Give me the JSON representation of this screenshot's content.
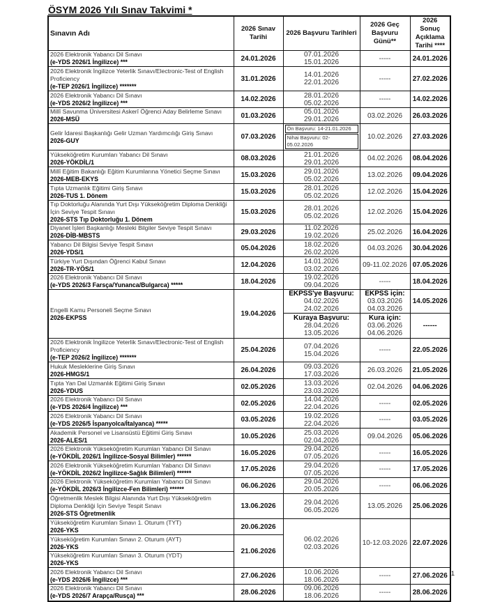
{
  "title": "ÖSYM 2026 Yılı Sınav Takvimi *",
  "headers": [
    "Sınavın Adı",
    "2026 Sınav Tarihi",
    "2026 Başvuru Tarihleri",
    "2026 Geç Başvuru Günü**",
    "2026 Sonuç Açıklama Tarihi ****"
  ],
  "rows": [
    {
      "name": "2026 Elektronik Yabancı Dil Sınavı",
      "code": "(e-YDS 2026/1 İngilizce) ***",
      "exam": "24.01.2026",
      "apply": [
        "07.01.2026",
        "15.01.2026"
      ],
      "late": "-----",
      "result": "24.01.2026"
    },
    {
      "name": "2026  Elektronik İngilizce Yeterlik Sınavı/Electronic-Test of English Proficiency",
      "code": "(e-TEP 2026/1 İngilizce) *******",
      "exam": "31.01.2026",
      "apply": [
        "14.01.2026",
        "22.01.2026"
      ],
      "late": "-----",
      "result": "27.02.2026"
    },
    {
      "name": "2026 Elektronik Yabancı Dil Sınavı",
      "code": "(e-YDS 2026/2 İngilizce) ***",
      "exam": "14.02.2026",
      "apply": [
        "28.01.2026",
        "05.02.2026"
      ],
      "late": "-----",
      "result": "14.02.2026"
    },
    {
      "name": "Millî Savunma Üniversitesi Askerî Öğrenci Aday Belirleme Sınavı",
      "code": "2026-MSÜ",
      "exam": "01.03.2026",
      "apply": [
        "05.01.2026",
        "29.01.2026"
      ],
      "late": "03.02.2026",
      "result": "26.03.2026"
    },
    {
      "name": "Gelir İdaresi Başkanlığı Gelir Uzman Yardımcılığı Giriş Sınavı",
      "code": "2026-GUY",
      "exam": "07.03.2026",
      "apply_notes": [
        "Ön Başvuru: 14-21.01.2026",
        "Nihai Başvuru: 02-05.02.2026"
      ],
      "late": "10.02.2026",
      "result": "27.03.2026"
    },
    {
      "name": "Yükseköğretim Kurumları Yabancı Dil Sınavı",
      "code": "2026-YÖKDİL/1",
      "exam": "08.03.2026",
      "apply": [
        "21.01.2026",
        "29.01.2026"
      ],
      "late": "04.02.2026",
      "result": "08.04.2026"
    },
    {
      "name": "Millî Eğitim Bakanlığı Eğitim Kurumlarına Yönetici Seçme Sınavı",
      "code": "2026-MEB-EKYS",
      "exam": "15.03.2026",
      "apply": [
        "29.01.2026",
        "05.02.2026"
      ],
      "late": "13.02.2026",
      "result": "09.04.2026"
    },
    {
      "name": "Tıpta Uzmanlık Eğitimi Giriş Sınavı",
      "code": "2026-TUS 1. Dönem",
      "exam": "15.03.2026",
      "apply": [
        "28.01.2026",
        "05.02.2026"
      ],
      "late": "12.02.2026",
      "result": "15.04.2026"
    },
    {
      "name": "Tıp Doktorluğu Alanında Yurt Dışı Yükseköğretim Diploma Denkliği İçin Seviye Tespit Sınavı",
      "code": "2026-STS Tıp Doktorluğu 1. Dönem",
      "exam": "15.03.2026",
      "apply": [
        "28.01.2026",
        "05.02.2026"
      ],
      "late": "12.02.2026",
      "result": "15.04.2026"
    },
    {
      "name": "Diyanet İşleri Başkanlığı Mesleki Bilgiler Seviye Tespit Sınavı",
      "code": "2026-DİB-MBSTS",
      "exam": "29.03.2026",
      "apply": [
        "11.02.2026",
        "19.02.2026"
      ],
      "late": "25.02.2026",
      "result": "16.04.2026"
    },
    {
      "name": "Yabancı Dil Bilgisi Seviye Tespit Sınavı",
      "code": "2026-YDS/1",
      "exam": "05.04.2026",
      "apply": [
        "18.02.2026",
        "26.02.2026"
      ],
      "late": "04.03.2026",
      "result": "30.04.2026"
    },
    {
      "name": "Türkiye Yurt Dışından Öğrenci Kabul Sınavı",
      "code": "2026-TR-YÖS/1",
      "exam": "12.04.2026",
      "apply": [
        "14.01.2026",
        "03.02.2026"
      ],
      "late": "09-11.02.2026",
      "result": "07.05.2026"
    },
    {
      "name": "2026 Elektronik Yabancı Dil Sınavı",
      "code": "(e-YDS 2026/3 Farsça/Yunanca/Bulgarca) *****",
      "exam": "18.04.2026",
      "apply": [
        "19.02.2026",
        "09.04.2026"
      ],
      "late": "-----",
      "result": "18.04.2026"
    }
  ],
  "ekpss": {
    "name": "Engelli Kamu Personeli Seçme Sınavı",
    "code": "2026-EKPSS",
    "exam": "19.04.2026",
    "parts": [
      {
        "apply_label": "EKPSS'ye Başvuru:",
        "apply": [
          "04.02.2026",
          "24.02.2026"
        ],
        "late_label": "EKPSS için:",
        "late": [
          "03.03.2026",
          "04.03.2026"
        ],
        "result": "14.05.2026"
      },
      {
        "apply_label": "Kuraya Başvuru:",
        "apply": [
          "28.04.2026",
          "13.05.2026"
        ],
        "late_label": "Kura için:",
        "late": [
          "03.06.2026",
          "04.06.2026"
        ],
        "result": "------"
      }
    ]
  },
  "rows2": [
    {
      "name": "2026  Elektronik İngilizce Yeterlik Sınavı/Electronic-Test of English Proficiency",
      "code": "(e-TEP 2026/2 İngilizce) *******",
      "exam": "25.04.2026",
      "apply": [
        "07.04.2026",
        "15.04.2026"
      ],
      "late": "-----",
      "result": "22.05.2026"
    },
    {
      "name": "Hukuk Mesleklerine Giriş Sınavı",
      "code": "2026-HMGS/1",
      "exam": "26.04.2026",
      "apply": [
        "09.03.2026",
        "17.03.2026"
      ],
      "late": "26.03.2026",
      "result": "21.05.2026"
    },
    {
      "name": "Tıpta Yan Dal Uzmanlık Eğitimi Giriş Sınavı",
      "code": "2026-YDUS",
      "exam": "02.05.2026",
      "apply": [
        "13.03.2026",
        "23.03.2026"
      ],
      "late": "02.04.2026",
      "result": "04.06.2026"
    },
    {
      "name": "2026 Elektronik Yabancı Dil Sınavı",
      "code": "(e-YDS 2026/4 İngilizce) ***",
      "exam": "02.05.2026",
      "apply": [
        "14.04.2026",
        "22.04.2026"
      ],
      "late": "-----",
      "result": "02.05.2026"
    },
    {
      "name": "2026 Elektronik Yabancı Dil Sınavı",
      "code": "(e-YDS 2026/5 İspanyolca/İtalyanca) *****",
      "exam": "03.05.2026",
      "apply": [
        "19.02.2026",
        "22.04.2026"
      ],
      "late": "-----",
      "result": "03.05.2026"
    },
    {
      "name": "Akademik Personel ve Lisansüstü Eğitimi Giriş Sınavı",
      "code": "2026-ALES/1",
      "exam": "10.05.2026",
      "apply": [
        "25.03.2026",
        "02.04.2026"
      ],
      "late": "09.04.2026",
      "result": "05.06.2026"
    },
    {
      "name": "2026 Elektronik Yükseköğretim Kurumları Yabancı Dil Sınavı",
      "code": "(e-YÖKDİL 2026/1 İngilizce-Sosyal Bilimler) ******",
      "exam": "16.05.2026",
      "apply": [
        "29.04.2026",
        "07.05.2026"
      ],
      "late": "-----",
      "result": "16.05.2026"
    },
    {
      "name": "2026 Elektronik Yükseköğretim Kurumları Yabancı Dil Sınavı",
      "code": "(e-YÖKDİL 2026/2 İngilizce-Sağlık Bilimleri) ******",
      "exam": "17.05.2026",
      "apply": [
        "29.04.2026",
        "07.05.2026"
      ],
      "late": "-----",
      "result": "17.05.2026"
    },
    {
      "name": "2026 Elektronik Yükseköğretim Kurumları Yabancı Dil Sınavı",
      "code": "(e-YÖKDİL 2026/3 İngilizce-Fen Bilimleri) ******",
      "exam": "06.06.2026",
      "apply": [
        "29.04.2026",
        "20.05.2026"
      ],
      "late": "-----",
      "result": "06.06.2026"
    },
    {
      "name": "Öğretmenlik Meslek Bilgisi Alanında Yurt Dışı Yükseköğretim Diploma Denkliği İçin Seviye Tespit Sınavı",
      "code": "2026-STS Öğretmenlik",
      "exam": "13.06.2026",
      "apply": [
        "29.04.2026",
        "06.05.2026"
      ],
      "late": "13.05.2026",
      "result": "25.06.2026"
    }
  ],
  "yks": {
    "sessions": [
      {
        "name": "Yükseköğretim Kurumları Sınavı 1. Oturum (TYT)",
        "code": "2026-YKS"
      },
      {
        "name": "Yükseköğretim Kurumları Sınavı 2. Oturum (AYT)",
        "code": "2026-YKS"
      },
      {
        "name": "Yükseköğretim Kurumları Sınavı 3. Oturum (YDT)",
        "code": "2026-YKS"
      }
    ],
    "exam1": "20.06.2026",
    "exam23": "21.06.2026",
    "apply": [
      "06.02.2026",
      "02.03.2026"
    ],
    "late": "10-12.03.2026",
    "result": "22.07.2026"
  },
  "rows3": [
    {
      "name": "2026 Elektronik Yabancı Dil Sınavı",
      "code": "(e-YDS 2026/6 İngilizce) ***",
      "exam": "27.06.2026",
      "apply": [
        "10.06.2026",
        "18.06.2026"
      ],
      "late": "-----",
      "result": "27.06.2026"
    },
    {
      "name": "2026 Elektronik Yabancı Dil Sınavı",
      "code": "(e-YDS 2026/7 Arapça/Rusça) ***",
      "exam": "28.06.2026",
      "apply": [
        "09.06.2026",
        "18.06.2026"
      ],
      "late": "-----",
      "result": "28.06.2026"
    }
  ],
  "page_number": "1"
}
